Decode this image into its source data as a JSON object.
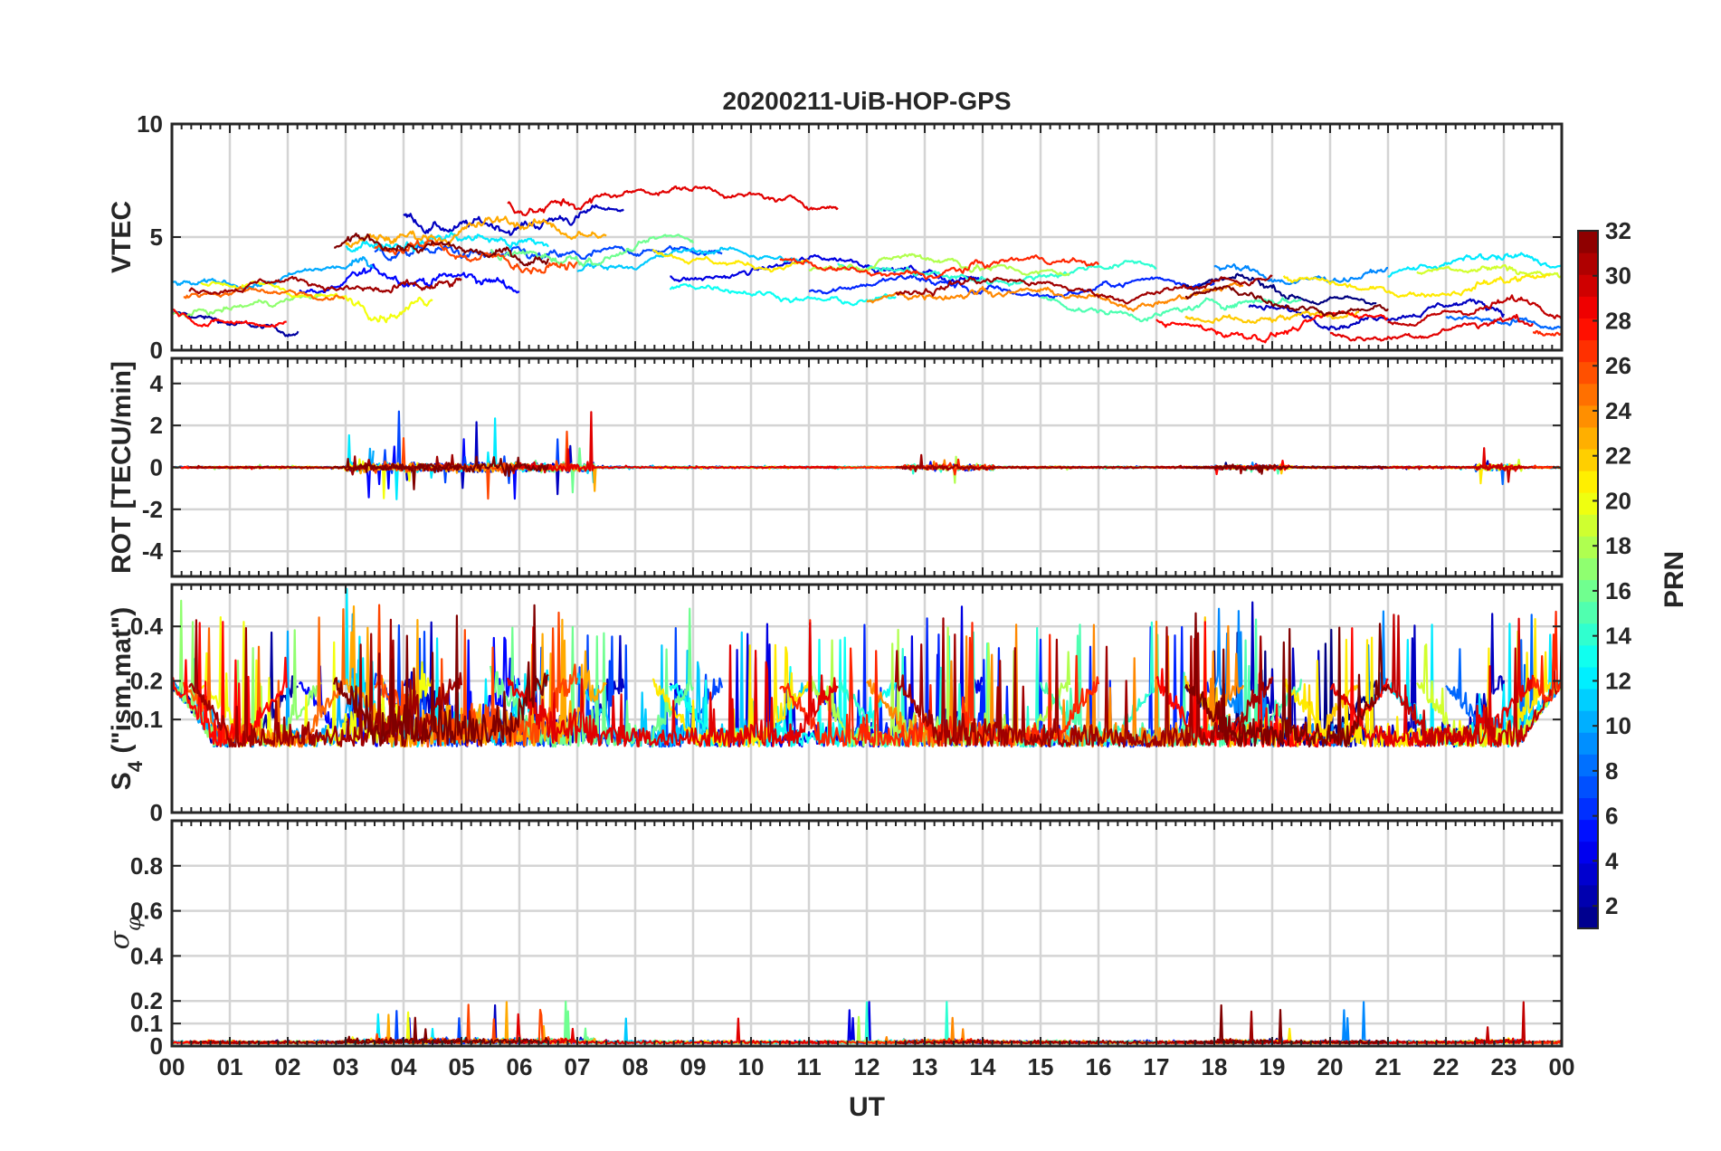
{
  "chart_data": {
    "type": "line",
    "title": "20200211-UiB-HOP-GPS",
    "xlabel": "UT",
    "x_range_hours": [
      0,
      24
    ],
    "x_tick_labels": [
      "00",
      "01",
      "02",
      "03",
      "04",
      "05",
      "06",
      "07",
      "08",
      "09",
      "10",
      "11",
      "12",
      "13",
      "14",
      "15",
      "16",
      "17",
      "18",
      "19",
      "20",
      "21",
      "22",
      "23",
      "00"
    ],
    "grid": true,
    "series_note": "One trace per GPS satellite PRN, colored by PRN (jet colormap)",
    "panels": [
      {
        "name": "vtec",
        "ylabel": "VTEC",
        "ylim": [
          0,
          10
        ],
        "ytick_values": [
          0,
          5,
          10
        ],
        "ytick_labels": [
          "0",
          "5",
          "10"
        ]
      },
      {
        "name": "rot",
        "ylabel": "ROT [TECU/min]",
        "ylim": [
          -5.2,
          5.2
        ],
        "ytick_values": [
          -4,
          -2,
          0,
          2,
          4
        ],
        "ytick_labels": [
          "-4",
          "-2",
          "0",
          "2",
          "4"
        ]
      },
      {
        "name": "s4",
        "ylabel_main": "S",
        "ylabel_sub": "4",
        "ylabel_rest": " (\"ism.mat\")",
        "ylim": [
          0,
          0.6
        ],
        "ytick_values": [
          0,
          0.1,
          0.2,
          0.4
        ],
        "ytick_labels": [
          "0",
          "0.1",
          "0.2",
          "0.4"
        ],
        "y_scale": "sqrt"
      },
      {
        "name": "sigma_phi",
        "ylabel_main": "σ",
        "ylabel_sub": "φ",
        "ylim": [
          0,
          1
        ],
        "ytick_values": [
          0,
          0.1,
          0.2,
          0.4,
          0.6,
          0.8
        ],
        "ytick_labels": [
          "0",
          "0.1",
          "0.2",
          "0.4",
          "0.6",
          "0.8"
        ]
      }
    ],
    "colorbar": {
      "label": "PRN",
      "range": [
        1,
        32
      ],
      "colormap": "jet",
      "tick_values": [
        2,
        4,
        6,
        8,
        10,
        12,
        14,
        16,
        18,
        20,
        22,
        24,
        26,
        28,
        30,
        32
      ],
      "tick_labels": [
        "2",
        "4",
        "6",
        "8",
        "10",
        "12",
        "14",
        "16",
        "18",
        "20",
        "22",
        "24",
        "26",
        "28",
        "30",
        "32"
      ]
    }
  }
}
